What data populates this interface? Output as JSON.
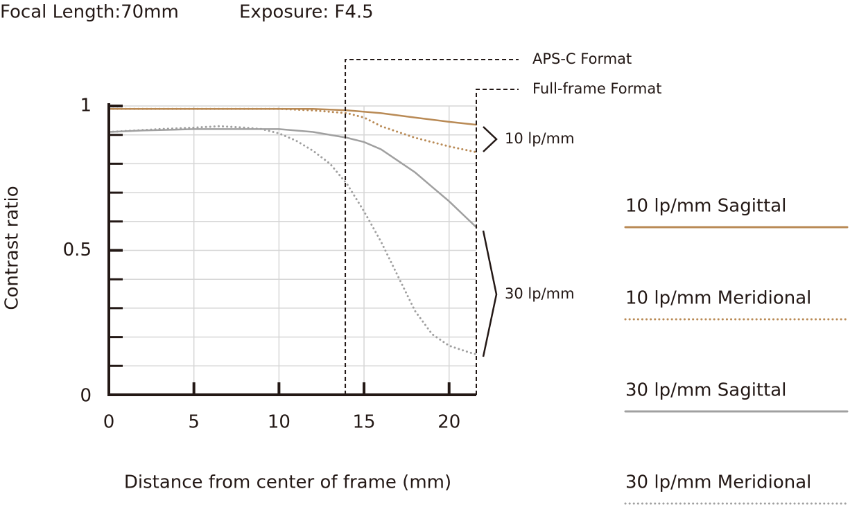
{
  "chart_data": {
    "type": "line",
    "title": "Focal Length:70mm",
    "subtitle": "Exposure: F4.5",
    "x_label": "Distance from center of frame (mm)",
    "y_label": "Contrast ratio",
    "xlim": [
      0,
      21.6
    ],
    "ylim": [
      0,
      1
    ],
    "xticks": [
      0,
      5,
      10,
      15,
      20
    ],
    "yticks": [
      0,
      0.5,
      1
    ],
    "yminorticks": [
      0.1,
      0.2,
      0.3,
      0.4,
      0.6,
      0.7,
      0.8,
      0.9
    ],
    "grid": true,
    "annotations": [
      {
        "text": "APS-C Format",
        "x": 13.9
      },
      {
        "text": "Full-frame Format",
        "x": 21.6
      },
      {
        "text": "10 lp/mm"
      },
      {
        "text": "30 lp/mm"
      }
    ],
    "series": [
      {
        "name": "10 lp/mm Sagittal",
        "color": "#b98a55",
        "dotted": false,
        "x": [
          0,
          2,
          4,
          6,
          8,
          10,
          12,
          14,
          16,
          18,
          20,
          21.6
        ],
        "values": [
          0.99,
          0.99,
          0.99,
          0.99,
          0.99,
          0.99,
          0.99,
          0.985,
          0.975,
          0.96,
          0.945,
          0.935
        ]
      },
      {
        "name": "10 lp/mm Meridional",
        "color": "#b98a55",
        "dotted": true,
        "x": [
          0,
          2,
          4,
          6,
          8,
          10,
          12,
          14,
          15,
          16,
          18,
          20,
          21.6
        ],
        "values": [
          0.99,
          0.99,
          0.99,
          0.99,
          0.99,
          0.99,
          0.985,
          0.975,
          0.96,
          0.93,
          0.89,
          0.86,
          0.84
        ]
      },
      {
        "name": "30 lp/mm Sagittal",
        "color": "#a0a0a0",
        "dotted": false,
        "x": [
          0,
          2,
          5,
          8,
          10,
          12,
          14,
          15,
          16,
          17,
          18,
          19,
          20,
          21.6
        ],
        "values": [
          0.91,
          0.915,
          0.92,
          0.92,
          0.92,
          0.91,
          0.89,
          0.875,
          0.85,
          0.81,
          0.77,
          0.72,
          0.67,
          0.58
        ]
      },
      {
        "name": "30 lp/mm Meridional",
        "color": "#a0a0a0",
        "dotted": true,
        "x": [
          0,
          3,
          5,
          6.5,
          8,
          9,
          10,
          11,
          12,
          13,
          14,
          15,
          16,
          17,
          18,
          19,
          20,
          21,
          21.6
        ],
        "values": [
          0.91,
          0.92,
          0.925,
          0.93,
          0.925,
          0.92,
          0.905,
          0.88,
          0.845,
          0.8,
          0.73,
          0.635,
          0.53,
          0.41,
          0.29,
          0.21,
          0.17,
          0.15,
          0.14
        ]
      }
    ]
  }
}
